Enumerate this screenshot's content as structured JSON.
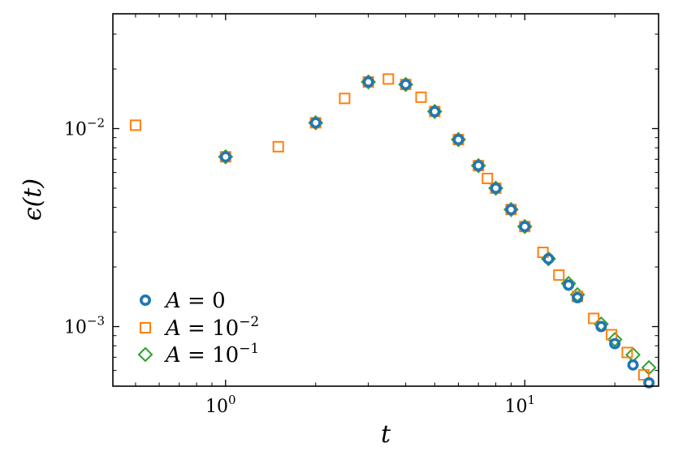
{
  "chart_data": {
    "type": "scatter",
    "title": "",
    "xlabel": "t",
    "ylabel": "ϵ(t)",
    "xscale": "log",
    "yscale": "log",
    "xlim": [
      0.42,
      28
    ],
    "ylim": [
      0.0005,
      0.038
    ],
    "xticks": [
      {
        "base": "10",
        "exp": "0",
        "value": 1
      },
      {
        "base": "10",
        "exp": "1",
        "value": 10
      }
    ],
    "yticks": [
      {
        "base": "10",
        "exp": "−2",
        "value": 0.01
      },
      {
        "base": "10",
        "exp": "−3",
        "value": 0.001
      }
    ],
    "grid": false,
    "legend_position": "lower-left",
    "series": [
      {
        "name": "A = 0",
        "name_parts": {
          "var": "A",
          "rel": " = ",
          "base": "0",
          "exp": ""
        },
        "marker": "circle",
        "color": "#1f77b4",
        "x": [
          1,
          2,
          3,
          4,
          5,
          6,
          7,
          8,
          9,
          10,
          12,
          14,
          15,
          18,
          20,
          23,
          26
        ],
        "y": [
          0.0072,
          0.0107,
          0.0172,
          0.0167,
          0.0122,
          0.0088,
          0.0065,
          0.005,
          0.0039,
          0.0032,
          0.0022,
          0.00162,
          0.0014,
          0.001,
          0.00082,
          0.00064,
          0.00052
        ]
      },
      {
        "name": "A = 10−2",
        "name_parts": {
          "var": "A",
          "rel": " = ",
          "base": "10",
          "exp": "−2"
        },
        "marker": "square",
        "color": "#ff7f0e",
        "x": [
          0.5,
          1,
          1.5,
          2,
          2.5,
          3,
          3.5,
          4,
          4.5,
          5,
          6,
          7,
          7.5,
          8,
          9,
          10,
          11.5,
          13,
          15,
          17,
          19.5,
          22,
          25
        ],
        "y": [
          0.0104,
          0.0072,
          0.0081,
          0.0107,
          0.0142,
          0.0172,
          0.0178,
          0.0167,
          0.0144,
          0.0122,
          0.0088,
          0.0065,
          0.0056,
          0.005,
          0.0039,
          0.0032,
          0.00237,
          0.00182,
          0.00142,
          0.0011,
          0.00091,
          0.00074,
          0.00057
        ]
      },
      {
        "name": "A = 10−1",
        "name_parts": {
          "var": "A",
          "rel": " = ",
          "base": "10",
          "exp": "−1"
        },
        "marker": "diamond",
        "color": "#2ca02c",
        "x": [
          1,
          2,
          3,
          4,
          5,
          6,
          7,
          8,
          9,
          10,
          12,
          14,
          15,
          18,
          20,
          23,
          26
        ],
        "y": [
          0.0072,
          0.0107,
          0.0172,
          0.0167,
          0.0122,
          0.0088,
          0.0065,
          0.005,
          0.0039,
          0.0032,
          0.0022,
          0.00165,
          0.00145,
          0.00103,
          0.00086,
          0.00072,
          0.00062
        ]
      }
    ]
  }
}
